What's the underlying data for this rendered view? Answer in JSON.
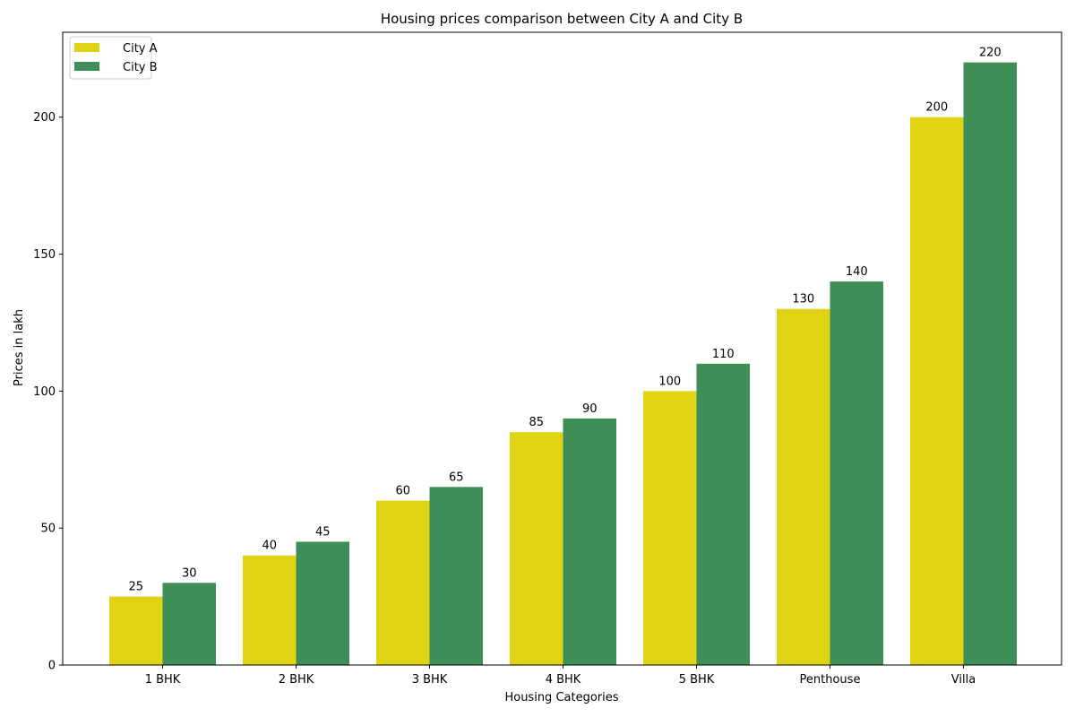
{
  "chart_data": {
    "type": "bar",
    "title": "Housing prices comparison between City A and City B",
    "xlabel": "Housing Categories",
    "ylabel": "Prices in lakh",
    "categories": [
      "1 BHK",
      "2 BHK",
      "3 BHK",
      "4 BHK",
      "5 BHK",
      "Penthouse",
      "Villa"
    ],
    "series": [
      {
        "name": "City A",
        "values": [
          25,
          40,
          60,
          85,
          100,
          130,
          200
        ],
        "color": "#e0d314"
      },
      {
        "name": "City B",
        "values": [
          30,
          45,
          65,
          90,
          110,
          140,
          220
        ],
        "color": "#3f8e57"
      }
    ],
    "ylim": [
      0,
      231
    ],
    "yticks": [
      0,
      50,
      100,
      150,
      200
    ],
    "grid": false,
    "legend": "top-left",
    "data_labels": true
  }
}
